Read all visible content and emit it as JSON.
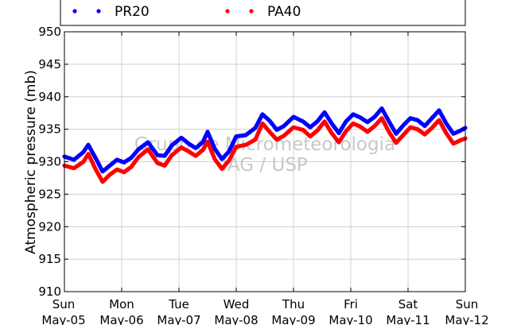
{
  "chart_data": {
    "type": "scatter",
    "title": "",
    "xlabel": "",
    "ylabel": "Atmospheric pressure (mb)",
    "ylim": [
      910,
      950
    ],
    "yticks": [
      910,
      915,
      920,
      925,
      930,
      935,
      940,
      945,
      950
    ],
    "xticks": [
      {
        "day": "Sun",
        "date": "May-05"
      },
      {
        "day": "Mon",
        "date": "May-06"
      },
      {
        "day": "Tue",
        "date": "May-07"
      },
      {
        "day": "Wed",
        "date": "May-08"
      },
      {
        "day": "Thu",
        "date": "May-09"
      },
      {
        "day": "Fri",
        "date": "May-10"
      },
      {
        "day": "Sat",
        "date": "May-11"
      },
      {
        "day": "Sun",
        "date": "May-12"
      }
    ],
    "grid": true,
    "legend_position": "top",
    "watermark": [
      "Grupo de Micrometeorologia",
      "IAG / USP"
    ],
    "series": [
      {
        "name": "PR20",
        "color": "#0000ff",
        "points": [
          [
            "May-05 00:00",
            930.8
          ],
          [
            "May-05 04:00",
            930.3
          ],
          [
            "May-05 08:00",
            931.5
          ],
          [
            "May-05 10:00",
            932.6
          ],
          [
            "May-05 13:00",
            930.6
          ],
          [
            "May-05 16:00",
            928.5
          ],
          [
            "May-05 19:00",
            929.4
          ],
          [
            "May-05 22:00",
            930.3
          ],
          [
            "May-06 01:00",
            929.9
          ],
          [
            "May-06 04:00",
            930.6
          ],
          [
            "May-06 07:00",
            931.9
          ],
          [
            "May-06 11:00",
            933.0
          ],
          [
            "May-06 15:00",
            931.0
          ],
          [
            "May-06 18:00",
            930.9
          ],
          [
            "May-06 21:00",
            932.5
          ],
          [
            "May-07 01:00",
            933.7
          ],
          [
            "May-07 04:00",
            932.8
          ],
          [
            "May-07 07:00",
            932.1
          ],
          [
            "May-07 10:00",
            933.0
          ],
          [
            "May-07 12:00",
            934.6
          ],
          [
            "May-07 15:00",
            932.0
          ],
          [
            "May-07 18:00",
            930.4
          ],
          [
            "May-07 21:00",
            931.6
          ],
          [
            "May-08 00:00",
            933.9
          ],
          [
            "May-08 04:00",
            934.1
          ],
          [
            "May-08 08:00",
            935.2
          ],
          [
            "May-08 11:00",
            937.3
          ],
          [
            "May-08 14:00",
            936.3
          ],
          [
            "May-08 17:00",
            934.9
          ],
          [
            "May-08 20:00",
            935.5
          ],
          [
            "May-09 00:00",
            936.9
          ],
          [
            "May-09 04:00",
            936.2
          ],
          [
            "May-09 07:00",
            935.3
          ],
          [
            "May-09 10:00",
            936.2
          ],
          [
            "May-09 13:00",
            937.6
          ],
          [
            "May-09 16:00",
            935.9
          ],
          [
            "May-09 19:00",
            934.4
          ],
          [
            "May-09 22:00",
            936.2
          ],
          [
            "May-10 01:00",
            937.3
          ],
          [
            "May-10 04:00",
            936.8
          ],
          [
            "May-10 07:00",
            936.1
          ],
          [
            "May-10 10:00",
            936.9
          ],
          [
            "May-10 13:00",
            938.2
          ],
          [
            "May-10 16:00",
            936.2
          ],
          [
            "May-10 19:00",
            934.3
          ],
          [
            "May-10 22:00",
            935.6
          ],
          [
            "May-11 01:00",
            936.7
          ],
          [
            "May-11 04:00",
            936.4
          ],
          [
            "May-11 07:00",
            935.5
          ],
          [
            "May-11 10:00",
            936.7
          ],
          [
            "May-11 13:00",
            937.9
          ],
          [
            "May-11 16:00",
            935.9
          ],
          [
            "May-11 19:00",
            934.3
          ],
          [
            "May-11 22:00",
            934.8
          ],
          [
            "May-12 00:00",
            935.2
          ]
        ]
      },
      {
        "name": "PA40",
        "color": "#ff0000",
        "points": [
          [
            "May-05 00:00",
            929.4
          ],
          [
            "May-05 04:00",
            929.0
          ],
          [
            "May-05 08:00",
            930.0
          ],
          [
            "May-05 10:00",
            931.2
          ],
          [
            "May-05 13:00",
            928.9
          ],
          [
            "May-05 16:00",
            926.9
          ],
          [
            "May-05 19:00",
            928.0
          ],
          [
            "May-05 22:00",
            928.8
          ],
          [
            "May-06 01:00",
            928.4
          ],
          [
            "May-06 04:00",
            929.2
          ],
          [
            "May-06 07:00",
            930.7
          ],
          [
            "May-06 11:00",
            931.9
          ],
          [
            "May-06 15:00",
            929.8
          ],
          [
            "May-06 18:00",
            929.4
          ],
          [
            "May-06 21:00",
            931.0
          ],
          [
            "May-07 01:00",
            932.2
          ],
          [
            "May-07 04:00",
            931.6
          ],
          [
            "May-07 07:00",
            930.9
          ],
          [
            "May-07 10:00",
            931.8
          ],
          [
            "May-07 12:00",
            933.1
          ],
          [
            "May-07 15:00",
            930.4
          ],
          [
            "May-07 18:00",
            928.9
          ],
          [
            "May-07 21:00",
            930.2
          ],
          [
            "May-08 00:00",
            932.3
          ],
          [
            "May-08 04:00",
            932.6
          ],
          [
            "May-08 08:00",
            933.4
          ],
          [
            "May-08 11:00",
            935.9
          ],
          [
            "May-08 14:00",
            934.6
          ],
          [
            "May-08 17:00",
            933.4
          ],
          [
            "May-08 20:00",
            934.0
          ],
          [
            "May-09 00:00",
            935.3
          ],
          [
            "May-09 04:00",
            934.9
          ],
          [
            "May-09 07:00",
            933.9
          ],
          [
            "May-09 10:00",
            934.8
          ],
          [
            "May-09 13:00",
            936.2
          ],
          [
            "May-09 16:00",
            934.4
          ],
          [
            "May-09 19:00",
            933.0
          ],
          [
            "May-09 22:00",
            934.7
          ],
          [
            "May-10 01:00",
            935.9
          ],
          [
            "May-10 04:00",
            935.4
          ],
          [
            "May-10 07:00",
            934.6
          ],
          [
            "May-10 10:00",
            935.5
          ],
          [
            "May-10 13:00",
            936.7
          ],
          [
            "May-10 16:00",
            934.6
          ],
          [
            "May-10 19:00",
            932.9
          ],
          [
            "May-10 22:00",
            934.1
          ],
          [
            "May-11 01:00",
            935.3
          ],
          [
            "May-11 04:00",
            935.0
          ],
          [
            "May-11 07:00",
            934.2
          ],
          [
            "May-11 10:00",
            935.2
          ],
          [
            "May-11 13:00",
            936.4
          ],
          [
            "May-11 16:00",
            934.4
          ],
          [
            "May-11 19:00",
            932.8
          ],
          [
            "May-11 22:00",
            933.3
          ],
          [
            "May-12 00:00",
            933.6
          ]
        ]
      }
    ]
  }
}
